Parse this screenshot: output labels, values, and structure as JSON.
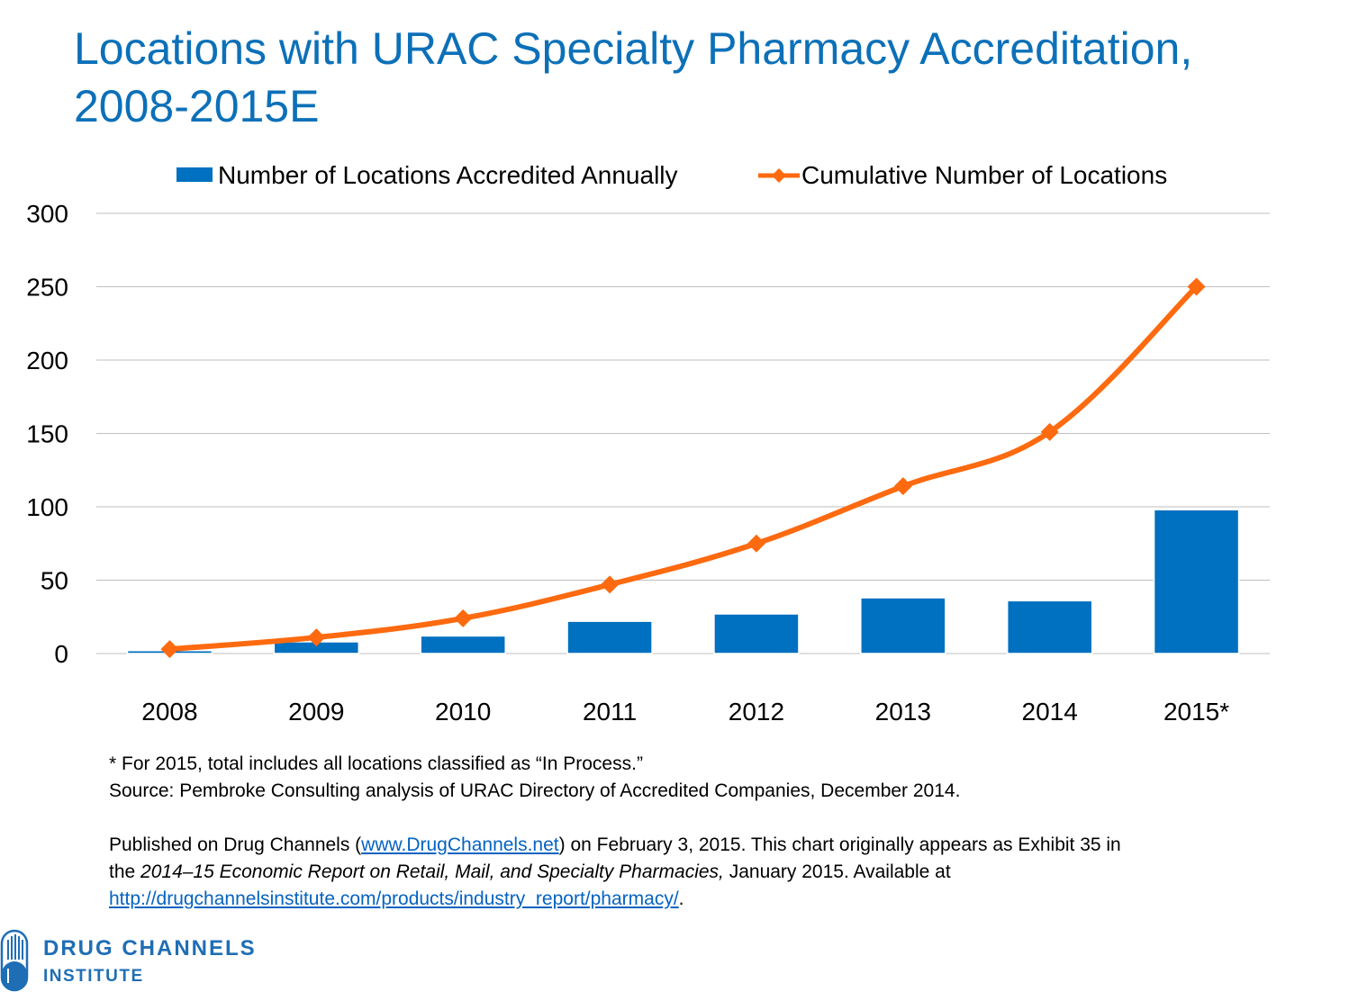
{
  "title": "Locations with URAC Specialty Pharmacy Accreditation, 2008-2015E",
  "legend": {
    "bar_label": "Number of Locations Accredited Annually",
    "line_label": "Cumulative Number of Locations"
  },
  "colors": {
    "title": "#0c70b8",
    "bar": "#0070c0",
    "line": "#fd6a0f",
    "grid": "#bfbfbf",
    "link": "#0563c1"
  },
  "chart_data": {
    "type": "bar+line",
    "categories": [
      "2008",
      "2009",
      "2010",
      "2011",
      "2012",
      "2013",
      "2014",
      "2015*"
    ],
    "series": [
      {
        "name": "Number of Locations Accredited Annually",
        "type": "bar",
        "values": [
          2,
          8,
          12,
          22,
          27,
          38,
          36,
          98
        ]
      },
      {
        "name": "Cumulative Number of Locations",
        "type": "line",
        "values": [
          3,
          11,
          24,
          47,
          75,
          114,
          151,
          250
        ]
      }
    ],
    "yticks": [
      0,
      50,
      100,
      150,
      200,
      250,
      300
    ],
    "ylim": [
      0,
      300
    ],
    "grid": true,
    "legend_position": "top"
  },
  "notes": {
    "line1": "* For 2015, total includes all locations classified as “In Process.”",
    "line2": "Source: Pembroke Consulting analysis of URAC Directory of Accredited Companies, December 2014.",
    "pub_prefix": "Published on Drug Channels (",
    "pub_link": "www.DrugChannels.net",
    "pub_suffix": ") on February 3, 2015. This chart originally appears as Exhibit 35 in",
    "line4_prefix": "the ",
    "line4_italic": "2014–15 Economic Report on Retail, Mail, and Specialty Pharmacies,",
    "line4_suffix": " January 2015. Available at",
    "url": "http://drugchannelsinstitute.com/products/industry_report/pharmacy/",
    "url_suffix": "."
  },
  "logo": {
    "line1": "DRUG CHANNELS",
    "line2": "INSTITUTE"
  }
}
